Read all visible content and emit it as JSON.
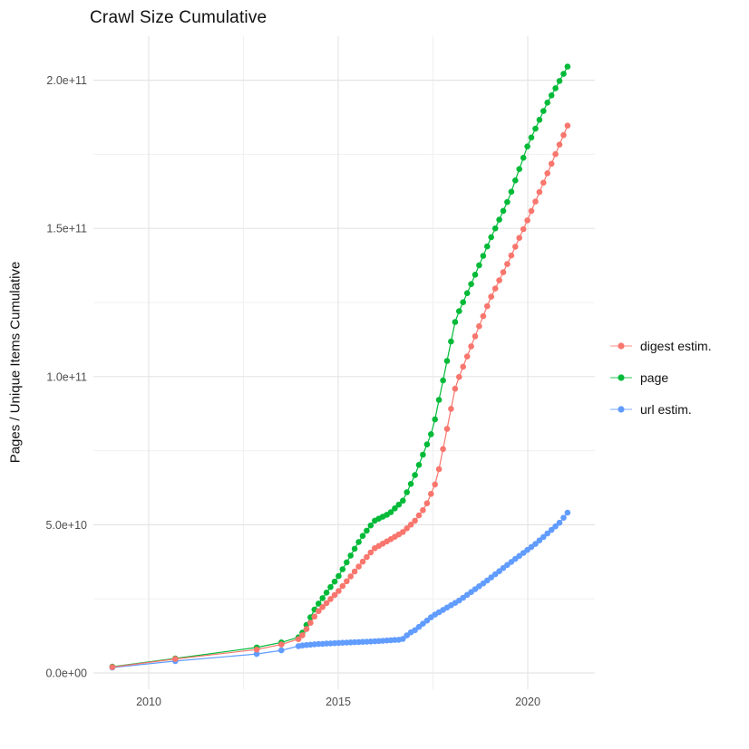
{
  "title": "Crawl Size Cumulative",
  "y_axis_title": "Pages / Unique Items Cumulative",
  "legend": {
    "items": [
      {
        "label": "digest estim.",
        "color": "#F8766D"
      },
      {
        "label": "page",
        "color": "#00BA38"
      },
      {
        "label": "url estim.",
        "color": "#619CFF"
      }
    ]
  },
  "chart_data": {
    "type": "line",
    "title": "Crawl Size Cumulative",
    "xlabel": "",
    "ylabel": "Pages / Unique Items Cumulative",
    "grid": true,
    "legend_position": "right",
    "point_style": "filled-circle",
    "xlim": [
      2008.55,
      2021.8
    ],
    "ylim": [
      -4500000000,
      215000000000.0
    ],
    "x_ticks": {
      "major": [
        2010,
        2015,
        2020
      ],
      "labels": [
        "2010",
        "2015",
        "2020"
      ],
      "minor": [
        2012.5,
        2017.5
      ]
    },
    "y_ticks": {
      "major": [
        0,
        50000000000.0,
        100000000000.0,
        150000000000.0,
        200000000000.0
      ],
      "labels": [
        "0.0e+00",
        "5.0e+10",
        "1.0e+11",
        "1.5e+11",
        "2.0e+11"
      ],
      "minor": [
        25000000000.0,
        75000000000.0,
        125000000000.0,
        175000000000.0
      ]
    },
    "sample_years_sparse": [
      2009.04,
      2010.7,
      2012.85,
      2013.5
    ],
    "dense_range": [
      2013.95,
      2021.05
    ],
    "dense_count": 67,
    "series": [
      {
        "name": "digest estim.",
        "color": "#F8766D",
        "anchors": [
          [
            2009.04,
            2000000000.0
          ],
          [
            2010.7,
            4700000000.0
          ],
          [
            2012.85,
            7900000000.0
          ],
          [
            2013.5,
            9600000000.0
          ],
          [
            2014.0,
            11600000000.0
          ],
          [
            2014.45,
            20500000000.0
          ],
          [
            2015.0,
            27500000000.0
          ],
          [
            2015.65,
            37600000000.0
          ],
          [
            2015.95,
            42000000000.0
          ],
          [
            2016.3,
            44500000000.0
          ],
          [
            2016.7,
            47500000000.0
          ],
          [
            2017.0,
            51000000000.0
          ],
          [
            2017.3,
            56000000000.0
          ],
          [
            2017.6,
            65000000000.0
          ],
          [
            2018.1,
            97000000000.0
          ],
          [
            2018.5,
            110000000000.0
          ],
          [
            2019.0,
            126000000000.0
          ],
          [
            2019.5,
            139000000000.0
          ],
          [
            2020.0,
            153000000000.0
          ],
          [
            2020.5,
            168000000000.0
          ],
          [
            2021.05,
            184700000000.0
          ]
        ]
      },
      {
        "name": "page",
        "color": "#00BA38",
        "anchors": [
          [
            2009.04,
            2100000000.0
          ],
          [
            2010.7,
            4900000000.0
          ],
          [
            2012.85,
            8600000000.0
          ],
          [
            2013.5,
            10300000000.0
          ],
          [
            2014.0,
            12200000000.0
          ],
          [
            2014.4,
            22000000000.0
          ],
          [
            2015.0,
            32500000000.0
          ],
          [
            2015.6,
            45500000000.0
          ],
          [
            2015.95,
            51300000000.0
          ],
          [
            2016.35,
            53800000000.0
          ],
          [
            2016.7,
            58000000000.0
          ],
          [
            2017.0,
            66000000000.0
          ],
          [
            2017.5,
            82300000000.0
          ],
          [
            2018.1,
            119500000000.0
          ],
          [
            2018.5,
            131000000000.0
          ],
          [
            2019.0,
            146000000000.0
          ],
          [
            2019.5,
            160000000000.0
          ],
          [
            2020.0,
            178000000000.0
          ],
          [
            2020.5,
            192000000000.0
          ],
          [
            2021.05,
            204600000000.0
          ]
        ]
      },
      {
        "name": "url estim.",
        "color": "#619CFF",
        "anchors": [
          [
            2009.04,
            1800000000.0
          ],
          [
            2010.7,
            4000000000.0
          ],
          [
            2012.85,
            6400000000.0
          ],
          [
            2013.5,
            7600000000.0
          ],
          [
            2014.0,
            9200000000.0
          ],
          [
            2014.4,
            9700000000.0
          ],
          [
            2015.0,
            10100000000.0
          ],
          [
            2015.5,
            10400000000.0
          ],
          [
            2016.0,
            10700000000.0
          ],
          [
            2016.6,
            11200000000.0
          ],
          [
            2016.75,
            11600000000.0
          ],
          [
            2016.85,
            13300000000.0
          ],
          [
            2017.0,
            14200000000.0
          ],
          [
            2017.5,
            19300000000.0
          ],
          [
            2018.2,
            24500000000.0
          ],
          [
            2018.9,
            30900000000.0
          ],
          [
            2019.6,
            37800000000.0
          ],
          [
            2020.2,
            43500000000.0
          ],
          [
            2020.55,
            47400000000.0
          ],
          [
            2020.85,
            50800000000.0
          ],
          [
            2021.05,
            54100000000.0
          ]
        ]
      }
    ]
  }
}
